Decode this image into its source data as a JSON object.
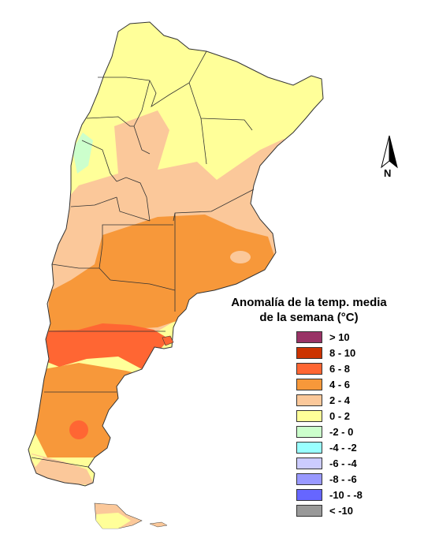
{
  "map": {
    "north_label": "N",
    "legend": {
      "title_line1": "Anomalía de la temp. media",
      "title_line2": "de la semana (°C)",
      "items": [
        {
          "label": "> 10",
          "color": "#993366"
        },
        {
          "label": "8 - 10",
          "color": "#cc3300"
        },
        {
          "label": "6 - 8",
          "color": "#ff6633"
        },
        {
          "label": "4 - 6",
          "color": "#f7983a"
        },
        {
          "label": "2 - 4",
          "color": "#fbc89a"
        },
        {
          "label": "0 - 2",
          "color": "#ffff99"
        },
        {
          "label": "-2 - 0",
          "color": "#ccffcc"
        },
        {
          "label": "-4 - -2",
          "color": "#99ffff"
        },
        {
          "label": "-6 - -4",
          "color": "#ccccff"
        },
        {
          "label": "-8 - -6",
          "color": "#9999ff"
        },
        {
          "label": "-10 - -8",
          "color": "#6666ff"
        },
        {
          "label": "< -10",
          "color": "#999999"
        }
      ]
    }
  }
}
